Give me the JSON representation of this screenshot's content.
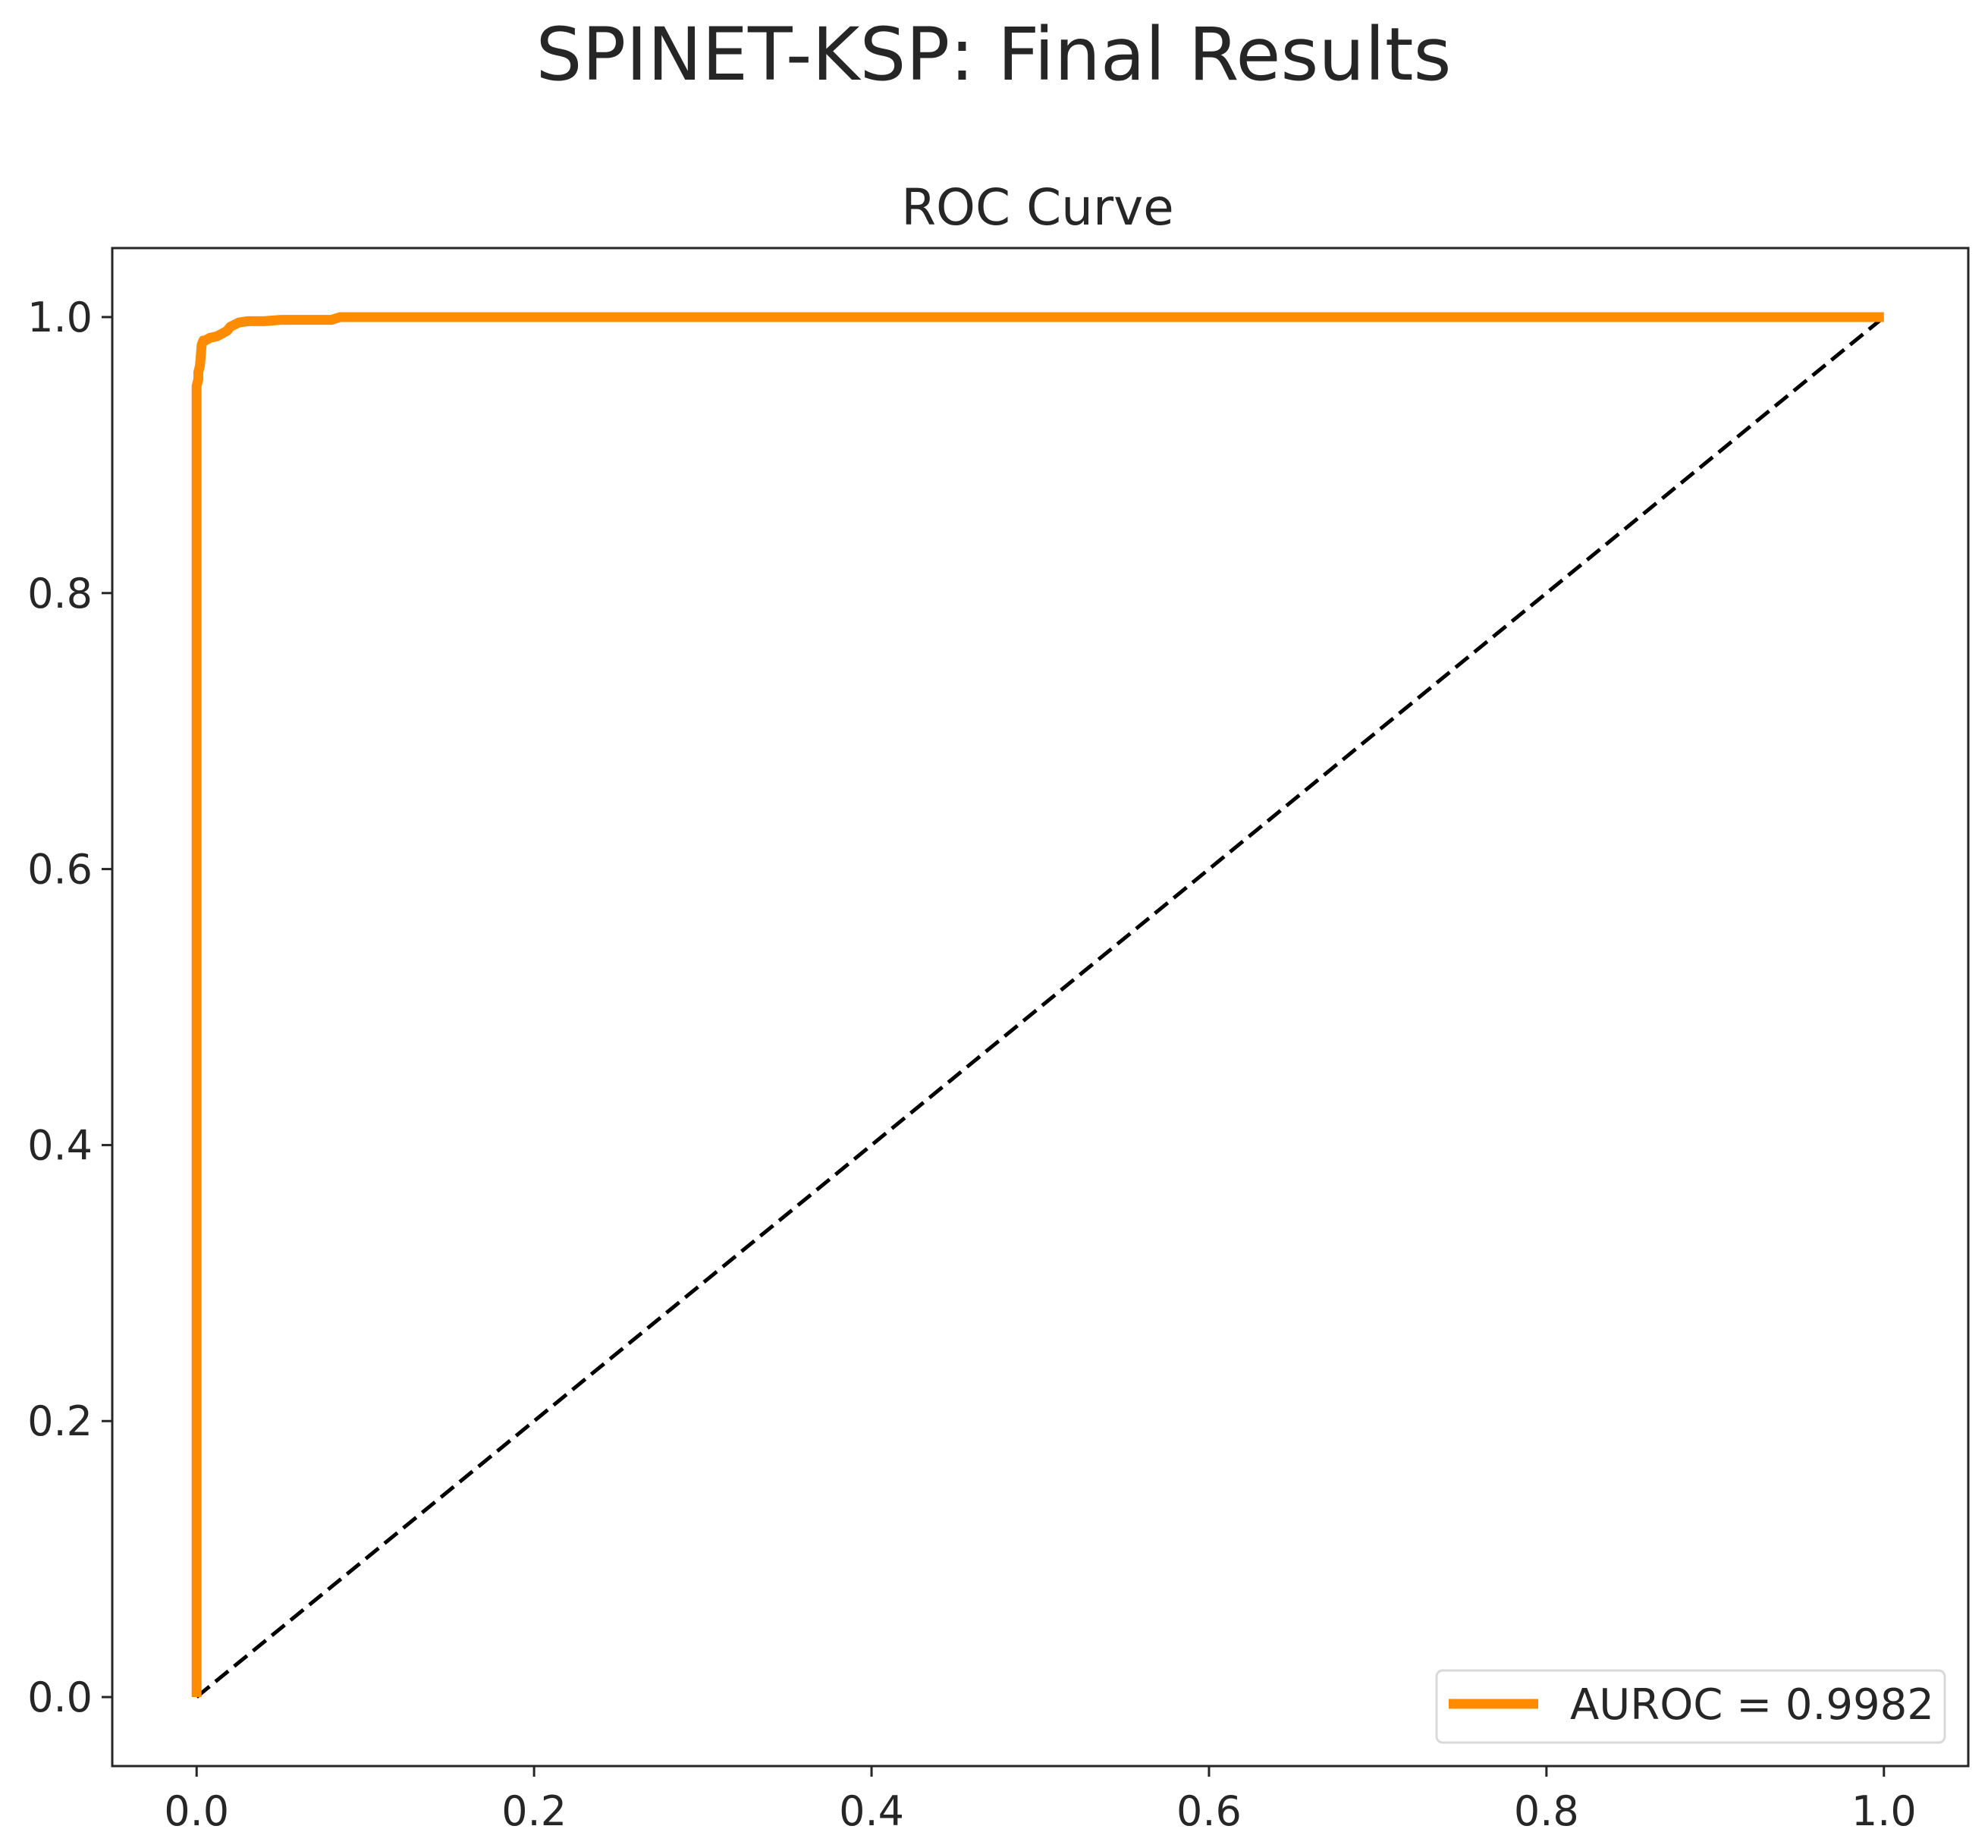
{
  "figure": {
    "suptitle": "SPINET-KSP: Final Results"
  },
  "chart_data": {
    "type": "line",
    "title": "ROC Curve",
    "xlabel": "",
    "ylabel": "",
    "xlim": [
      -0.05,
      1.05
    ],
    "ylim": [
      -0.05,
      1.05
    ],
    "xticks": [
      "0.0",
      "0.2",
      "0.4",
      "0.6",
      "0.8",
      "1.0"
    ],
    "yticks": [
      "0.0",
      "0.2",
      "0.4",
      "0.6",
      "0.8",
      "1.0"
    ],
    "grid": false,
    "legend_position": "lower right",
    "series": [
      {
        "name": "AUROC = 0.9982",
        "color": "#ff8c00",
        "style": "solid",
        "x": [
          0.0,
          0.0,
          0.001,
          0.001,
          0.002,
          0.003,
          0.004,
          0.005,
          0.008,
          0.012,
          0.015,
          0.018,
          0.02,
          0.025,
          0.03,
          0.04,
          0.05,
          0.06,
          0.07,
          0.08,
          0.085,
          0.1,
          0.2,
          0.4,
          0.6,
          0.8,
          1.0
        ],
        "y": [
          0.0,
          0.95,
          0.955,
          0.96,
          0.965,
          0.98,
          0.983,
          0.983,
          0.985,
          0.986,
          0.988,
          0.99,
          0.993,
          0.996,
          0.997,
          0.997,
          0.998,
          0.998,
          0.998,
          0.998,
          1.0,
          1.0,
          1.0,
          1.0,
          1.0,
          1.0,
          1.0
        ]
      },
      {
        "name": "",
        "color": "#000000",
        "style": "dashed",
        "x": [
          0.0,
          1.0
        ],
        "y": [
          0.0,
          1.0
        ]
      }
    ]
  }
}
